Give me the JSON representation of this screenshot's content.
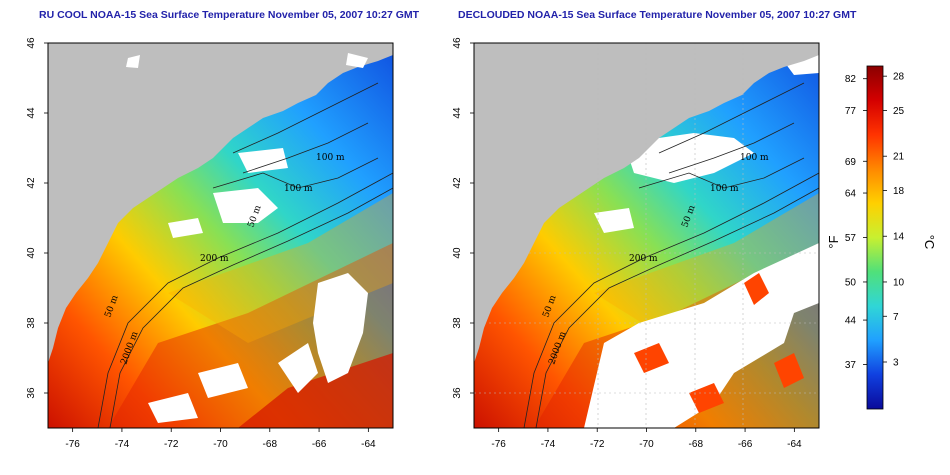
{
  "titles": {
    "left": "RU COOL NOAA-15 Sea Surface Temperature November 05, 2007 10:27 GMT",
    "right": "DECLOUDED NOAA-15 Sea Surface Temperature November 05, 2007 10:27 GMT"
  },
  "axes": {
    "lon_labels": [
      "-76",
      "-74",
      "-72",
      "-70",
      "-68",
      "-66",
      "-64"
    ],
    "lat_labels": [
      "36",
      "38",
      "40",
      "42",
      "44",
      "46"
    ],
    "lon_range": [
      -77,
      -63
    ],
    "lat_range": [
      35,
      46
    ]
  },
  "contour_labels": [
    "100 m",
    "100 m",
    "50 m",
    "200 m",
    "50 m",
    "2000 m"
  ],
  "colorbar": {
    "f_unit": "°F",
    "c_unit": "°C",
    "f_ticks": [
      "82",
      "77",
      "69",
      "64",
      "57",
      "50",
      "44",
      "37"
    ],
    "c_ticks": [
      "28",
      "25",
      "21",
      "18",
      "14",
      "10",
      "7",
      "3"
    ],
    "colors": [
      "#8b0000",
      "#d40000",
      "#ff3300",
      "#ff8800",
      "#ffd000",
      "#c8f030",
      "#50e07a",
      "#30d6d6",
      "#20a0ff",
      "#1040e0",
      "#0a0a9a"
    ]
  },
  "colors": {
    "land": "#bebebe",
    "cloud": "#ffffff",
    "title": "#2222aa"
  }
}
